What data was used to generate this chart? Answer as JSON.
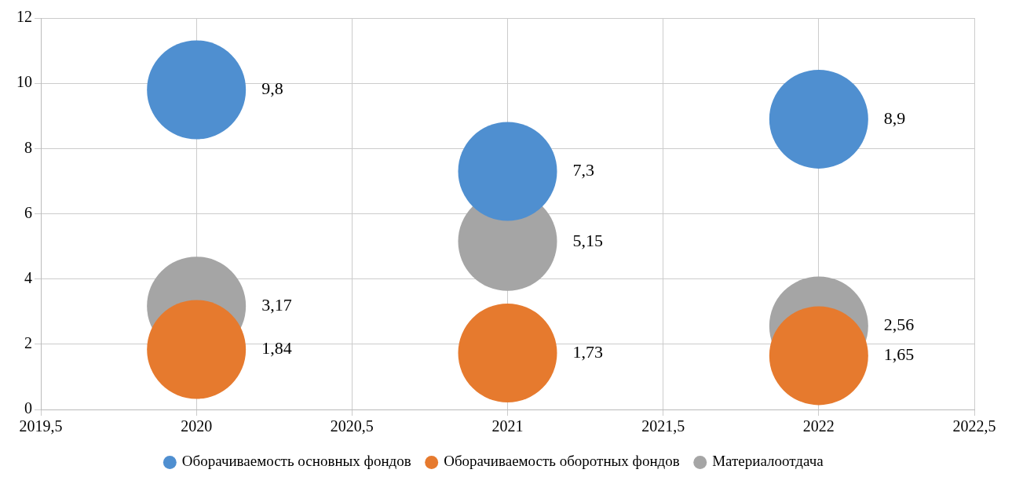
{
  "chart_data": {
    "type": "bubble",
    "x": [
      2020,
      2021,
      2022
    ],
    "series": [
      {
        "name": "Оборачиваемость основных фондов",
        "color": "#4f8fd0",
        "values": [
          9.8,
          7.3,
          8.9
        ],
        "sizes": [
          1,
          1,
          1
        ],
        "value_labels": [
          "9,8",
          "7,3",
          "8,9"
        ]
      },
      {
        "name": "Оборачиваемость оборотных фондов",
        "color": "#e67a2e",
        "values": [
          1.84,
          1.73,
          1.65
        ],
        "sizes": [
          1,
          1,
          1
        ],
        "value_labels": [
          "1,84",
          "1,73",
          "1,65"
        ]
      },
      {
        "name": "Материалоотдача",
        "color": "#a5a5a5",
        "values": [
          3.17,
          5.15,
          2.56
        ],
        "sizes": [
          1,
          1,
          1
        ],
        "value_labels": [
          "3,17",
          "5,15",
          "2,56"
        ]
      }
    ],
    "xlim": [
      2019.5,
      2022.5
    ],
    "xticks": [
      {
        "value": 2019.5,
        "label": "2019,5"
      },
      2020,
      {
        "value": 2020.5,
        "label": "2020,5"
      },
      2021,
      {
        "value": 2021.5,
        "label": "2021,5"
      },
      2022,
      {
        "value": 2022.5,
        "label": "2022,5"
      }
    ],
    "ylim": [
      0,
      12
    ],
    "yticks": [
      0,
      2,
      4,
      6,
      8,
      10,
      12
    ],
    "grid": true,
    "legend": "bottom"
  }
}
